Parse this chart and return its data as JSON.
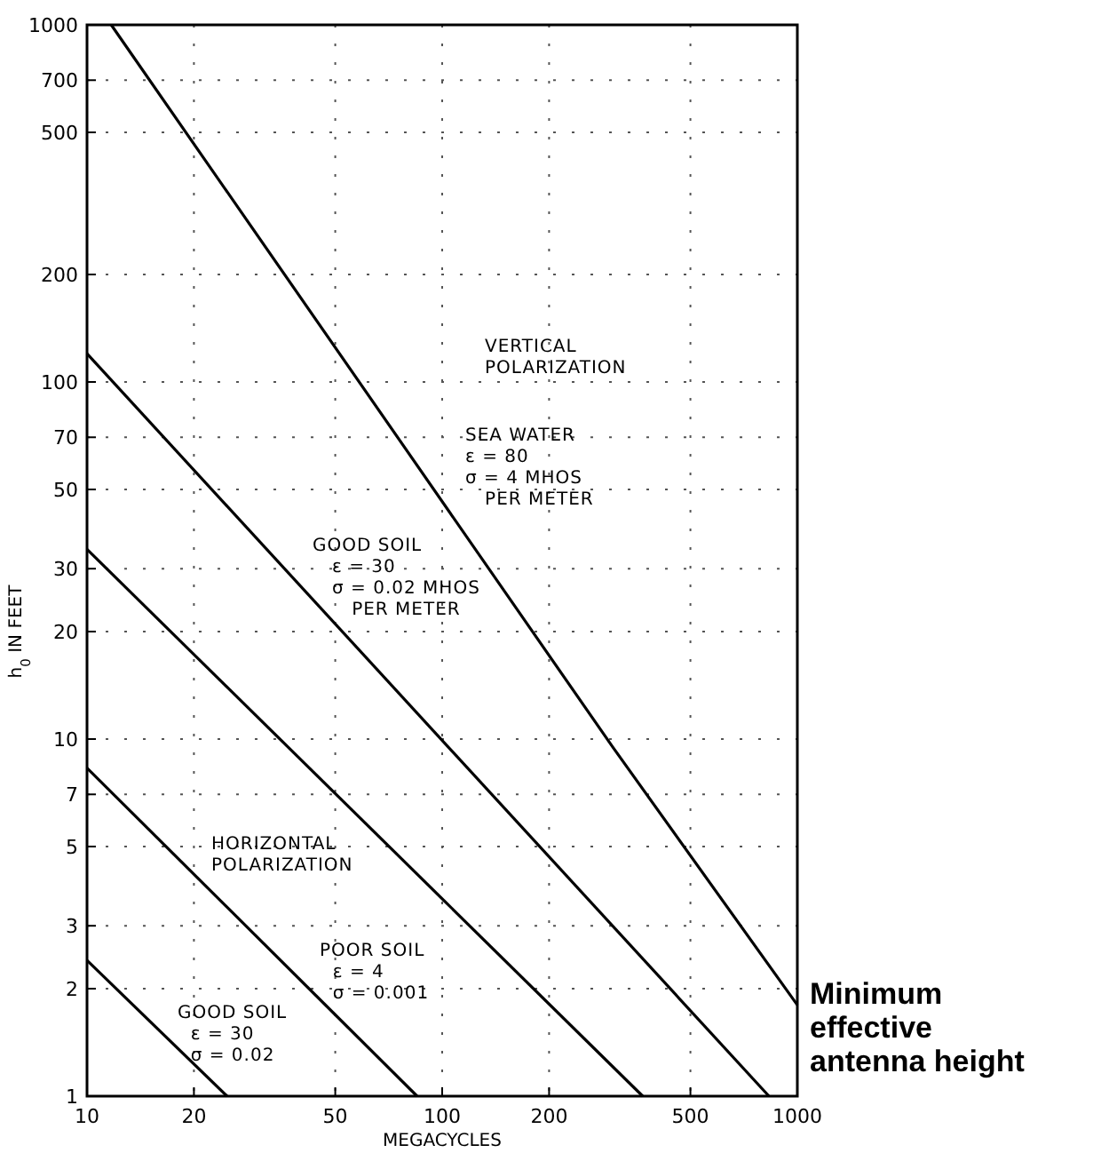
{
  "chart_data": {
    "type": "line",
    "xlabel": "MEGACYCLES",
    "ylabel": "h$_{0}$ IN FEET",
    "log": "xy",
    "xlim": [
      10,
      1000
    ],
    "xticks": [
      10,
      20,
      50,
      100,
      200,
      500,
      1000
    ],
    "ylim": [
      1,
      1000
    ],
    "yticks": [
      1,
      2,
      3,
      5,
      7,
      10,
      20,
      30,
      50,
      70,
      100,
      200,
      500,
      700,
      1000
    ],
    "grid": true,
    "line_style": "solid",
    "series": [
      {
        "color": "#000000",
        "x": [
          11.7,
          302,
          1000
        ],
        "values": [
          1000,
          9.5,
          1.8
        ]
      },
      {
        "color": "#000000",
        "x": [
          10,
          832
        ],
        "values": [
          120,
          1
        ]
      },
      {
        "color": "#000000",
        "x": [
          10,
          367
        ],
        "values": [
          34,
          1
        ]
      },
      {
        "color": "#000000",
        "x": [
          10,
          85
        ],
        "values": [
          8.3,
          1
        ]
      },
      {
        "color": "#000000",
        "x": [
          10,
          24.8
        ],
        "values": [
          2.4,
          1
        ]
      }
    ],
    "annotations": [
      "VERTICAL\nPOLARIZATION",
      "SEA WATER\nε = 80\nσ = 4 MHOS\n   PER METER",
      "GOOD SOIL\n   ε = 30\n   σ = 0.02 MHOS\n      PER METER",
      "HORIZONTAL\nPOLARIZATION",
      "POOR SOIL\n  ε = 4\n  σ = 0.001",
      "GOOD SOIL\n  ε = 30\n  σ = 0.02",
      "Minimum\neffective\nantenna height"
    ]
  }
}
